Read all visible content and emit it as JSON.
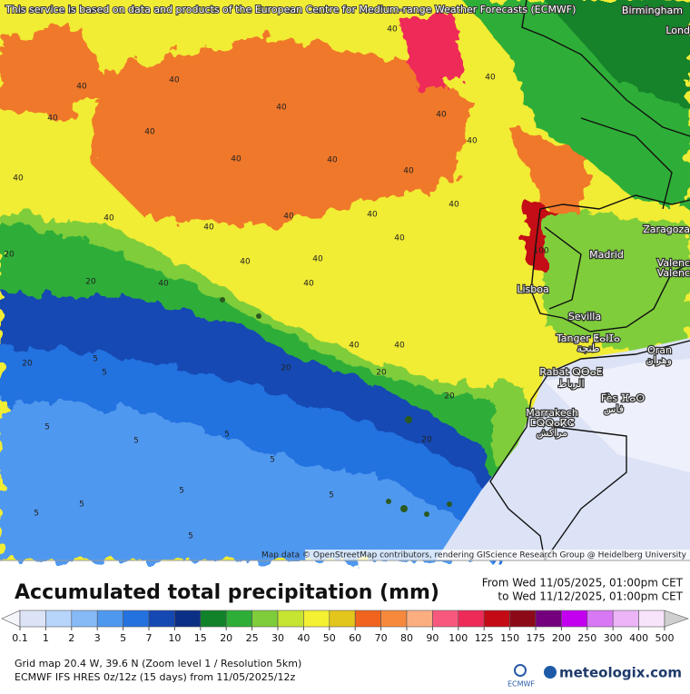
{
  "notice": "This service is based on data and products of the European Centre for Medium-range Weather Forecasts (ECMWF)",
  "attribution": "Map data © OpenStreetMap contributors, rendering GIScience Research Group @ Heidelberg University",
  "title": "Accumulated total precipitation (mm)",
  "period": {
    "from": "From Wed 11/05/2025, 01:00pm CET",
    "to": "to Wed 11/12/2025, 01:00pm CET"
  },
  "legend": {
    "values": [
      0.1,
      1,
      2,
      3,
      5,
      7,
      10,
      15,
      20,
      25,
      30,
      40,
      50,
      60,
      70,
      80,
      90,
      100,
      125,
      150,
      175,
      200,
      250,
      300,
      400,
      500
    ],
    "colors": [
      "#f4f4fb",
      "#dde3f6",
      "#b7d4fb",
      "#86baf6",
      "#4f98ef",
      "#2472e0",
      "#1448b3",
      "#0c2f86",
      "#12822a",
      "#2fae37",
      "#7fcd3b",
      "#c6e432",
      "#f4f032",
      "#e2c61b",
      "#f0641e",
      "#f7893c",
      "#fbae80",
      "#f8587e",
      "#ee2a58",
      "#c40a14",
      "#8c0a18",
      "#74007e",
      "#c400f0",
      "#d878f5",
      "#edb4f8",
      "#f7e4fa",
      "#cfcfcf"
    ]
  },
  "info": [
    "Grid map 20.4 W, 39.6 N (Zoom level 1 / Resolution 5km)",
    "ECMWF IFS HRES 0z/12z (15 days) from 11/05/2025/12z"
  ],
  "logos": {
    "ecmwf": "ECMWF",
    "brand": "meteologix.com"
  },
  "places": [
    "Birmingham",
    "Lond",
    "Zaragoza",
    "Madrid",
    "Valenc",
    "Valenc",
    "Lisboa",
    "Sevilla",
    "Tanger ⵟⴰⵏⵊⴰ",
    "طنجة",
    "Oran",
    "وهران",
    "Rabat ⵕⴱⴰⵟ",
    "الرباط",
    "Fès ⴼⴰⵙ",
    "فاس",
    "Marrakech",
    "ⵎⵕⵕⴰⴽⵛ",
    "مراكش"
  ],
  "contour_labels": [
    40,
    40,
    40,
    40,
    40,
    40,
    40,
    40,
    40,
    40,
    40,
    40,
    40,
    40,
    40,
    40,
    40,
    40,
    40,
    40,
    40,
    40,
    40,
    40,
    40,
    20,
    20,
    20,
    20,
    20,
    20,
    20,
    5,
    5,
    5,
    5,
    5,
    5,
    5,
    5,
    5,
    5,
    5,
    100
  ]
}
